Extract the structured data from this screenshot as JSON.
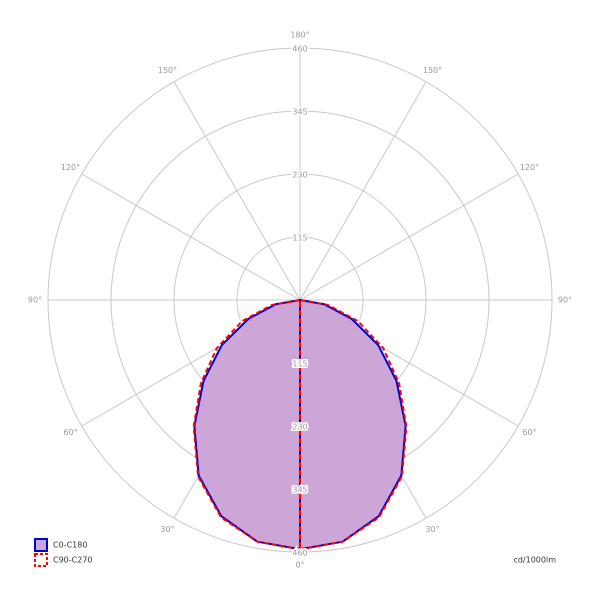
{
  "chart_data": {
    "type": "polar",
    "angles": [
      0,
      10,
      20,
      30,
      40,
      50,
      60,
      70,
      80,
      90
    ],
    "series": [
      {
        "name": "C0-C180",
        "color": "#0000cc",
        "fill": "#cda6d8",
        "dashed": false,
        "values": [
          455,
          448,
          420,
          370,
          300,
          230,
          165,
          100,
          45,
          0
        ]
      },
      {
        "name": "C90-C270",
        "color": "#ff0000",
        "dashed": true,
        "values": [
          455,
          448,
          422,
          372,
          302,
          236,
          175,
          112,
          52,
          0
        ]
      }
    ],
    "rlim": [
      0,
      460
    ],
    "rticks": [
      115,
      230,
      345,
      460
    ],
    "angle_ticks": [
      {
        "value": 0,
        "label": "0°"
      },
      {
        "value": 30,
        "label": "30°"
      },
      {
        "value": 60,
        "label": "60°"
      },
      {
        "value": 90,
        "label": "90°"
      },
      {
        "value": 120,
        "label": "120°"
      },
      {
        "value": 150,
        "label": "150°"
      },
      {
        "value": 180,
        "label": "180°"
      }
    ],
    "unit_label": "cd/1000lm",
    "grid": true
  }
}
